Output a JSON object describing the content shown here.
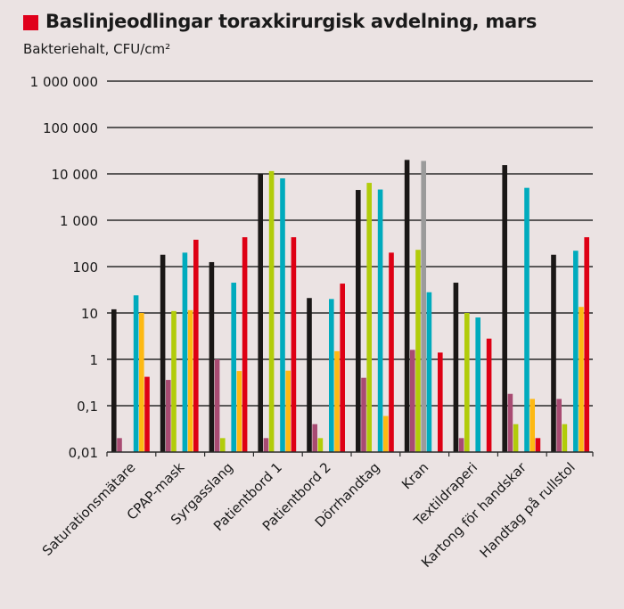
{
  "chart_data": {
    "type": "bar",
    "title": "Baslinjeodlingar toraxkirurgisk avdelning, mars",
    "ylabel": "Bakteriehalt, CFU/cm²",
    "xlabel": "",
    "yscale": "log",
    "ylim": [
      0.01,
      1000000
    ],
    "yticks": [
      1000000,
      100000,
      10000,
      1000,
      100,
      10,
      1,
      0.1,
      0.01
    ],
    "ytick_labels": [
      "1 000 000",
      "100 000",
      "10 000",
      "1 000",
      "100",
      "10",
      "1",
      "0,1",
      "0,01"
    ],
    "grid": true,
    "categories": [
      "Saturationsmätare",
      "CPAP-mask",
      "Syrgasslang",
      "Patientbord 1",
      "Patientbord 2",
      "Dörrhandtag",
      "Kran",
      "Textildraperi",
      "Kartong för handskar",
      "Handtag på rullstol"
    ],
    "series": [
      {
        "name": "black",
        "color": "#1a1716",
        "values": [
          12,
          180,
          125,
          10000,
          21,
          4500,
          20000,
          45,
          15500,
          180
        ]
      },
      {
        "name": "mauve",
        "color": "#a84b72",
        "values": [
          0.02,
          0.36,
          1.0,
          0.02,
          0.04,
          0.4,
          1.6,
          0.02,
          0.18,
          0.14
        ]
      },
      {
        "name": "green",
        "color": "#b2cc0a",
        "values": [
          null,
          11,
          0.02,
          11500,
          0.02,
          6400,
          230,
          10,
          0.04,
          0.04
        ]
      },
      {
        "name": "grey",
        "color": "#9b9b9b",
        "values": [
          null,
          null,
          null,
          null,
          null,
          null,
          19000,
          null,
          null,
          null
        ]
      },
      {
        "name": "cyan",
        "color": "#00abbd",
        "values": [
          24,
          200,
          45,
          8000,
          20,
          4600,
          28,
          8,
          5000,
          220
        ]
      },
      {
        "name": "orange",
        "color": "#fdb913",
        "values": [
          10,
          11.5,
          0.56,
          0.57,
          1.5,
          0.06,
          null,
          null,
          0.14,
          13.5
        ]
      },
      {
        "name": "red",
        "color": "#de0014",
        "values": [
          0.42,
          380,
          430,
          430,
          43,
          200,
          1.4,
          2.8,
          0.02,
          430
        ]
      }
    ]
  }
}
